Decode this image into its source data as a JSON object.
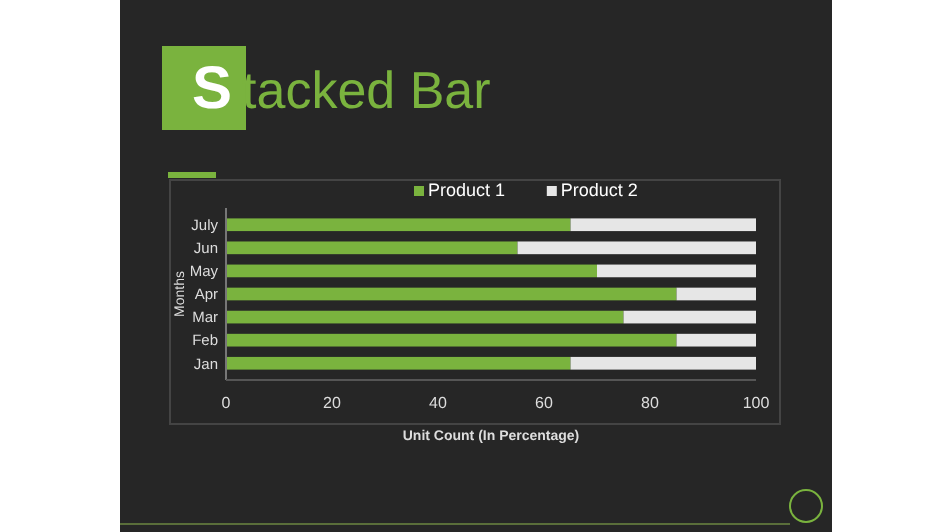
{
  "chart_data": {
    "type": "bar",
    "orientation": "horizontal",
    "stacked": true,
    "title": "Stacked Bar",
    "xlabel": "Unit Count (In Percentage)",
    "ylabel": "Months",
    "categories": [
      "July",
      "Jun",
      "May",
      "Apr",
      "Mar",
      "Feb",
      "Jan"
    ],
    "series": [
      {
        "name": "Product 1",
        "color": "#7ab33e",
        "values": [
          65,
          55,
          70,
          85,
          75,
          85,
          65
        ]
      },
      {
        "name": "Product 2",
        "color": "#e6e6e6",
        "values": [
          35,
          45,
          30,
          15,
          25,
          15,
          35
        ]
      }
    ],
    "xlim": [
      0,
      100
    ],
    "xticks": [
      0,
      20,
      40,
      60,
      80,
      100
    ],
    "grid": false,
    "legend": "top"
  }
}
